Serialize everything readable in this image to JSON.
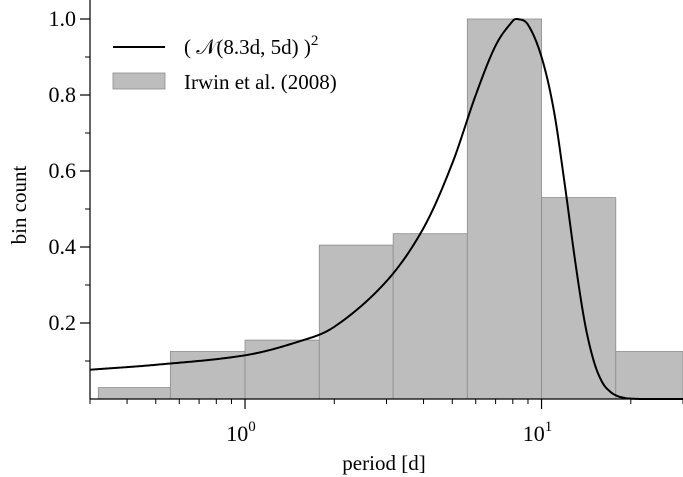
{
  "chart_data": {
    "type": "bar",
    "xlabel": "period [d]",
    "ylabel": "bin count",
    "xscale": "log",
    "xlim": [
      0.3,
      30
    ],
    "ylim": [
      0,
      1.05
    ],
    "yticks": [
      {
        "value": 0.2,
        "label": "0.2"
      },
      {
        "value": 0.4,
        "label": "0.4"
      },
      {
        "value": 0.6,
        "label": "0.6"
      },
      {
        "value": 0.8,
        "label": "0.8"
      },
      {
        "value": 1.0,
        "label": "1.0"
      }
    ],
    "xticks_major": [
      {
        "value": 1,
        "base": "10",
        "exp": "0"
      },
      {
        "value": 10,
        "base": "10",
        "exp": "1"
      }
    ],
    "legend": {
      "placement": "top-left",
      "entries": [
        {
          "label": "( 𝒩(8.3d, 5d) )",
          "sup": "2",
          "style": "line",
          "color": "#000000"
        },
        {
          "label": "Irwin et al. (2008)",
          "style": "patch",
          "color": "#bdbdbd"
        }
      ]
    },
    "histogram": {
      "name": "Irwin et al. (2008)",
      "color": "#bdbdbd",
      "edge_color": "#8c8c8c",
      "bins": [
        {
          "x0": 0.32,
          "x1": 0.56,
          "value": 0.03
        },
        {
          "x0": 0.56,
          "x1": 1.0,
          "value": 0.125
        },
        {
          "x0": 1.0,
          "x1": 1.78,
          "value": 0.155
        },
        {
          "x0": 1.78,
          "x1": 3.16,
          "value": 0.405
        },
        {
          "x0": 3.16,
          "x1": 5.62,
          "value": 0.435
        },
        {
          "x0": 5.62,
          "x1": 10.0,
          "value": 1.0
        },
        {
          "x0": 10.0,
          "x1": 17.8,
          "value": 0.53
        },
        {
          "x0": 17.8,
          "x1": 31.6,
          "value": 0.125
        }
      ]
    },
    "curve": {
      "name": "( 𝒩(8.3d, 5d) )²",
      "color": "#000000",
      "x": [
        0.3,
        0.5,
        1.0,
        1.5,
        2.0,
        3.0,
        4.0,
        5.0,
        6.0,
        7.0,
        8.0,
        8.3,
        9.0,
        10.0,
        11.0,
        12.0,
        13.0,
        14.0,
        15.0,
        16.0,
        17.0,
        18.0,
        19.0,
        20.0,
        22.0,
        25.0,
        30.0
      ],
      "y": [
        0.077,
        0.09,
        0.115,
        0.15,
        0.19,
        0.31,
        0.45,
        0.62,
        0.8,
        0.93,
        0.995,
        1.0,
        0.985,
        0.9,
        0.76,
        0.56,
        0.36,
        0.2,
        0.1,
        0.045,
        0.02,
        0.008,
        0.003,
        0.001,
        0.0,
        0.0,
        0.0
      ]
    }
  }
}
